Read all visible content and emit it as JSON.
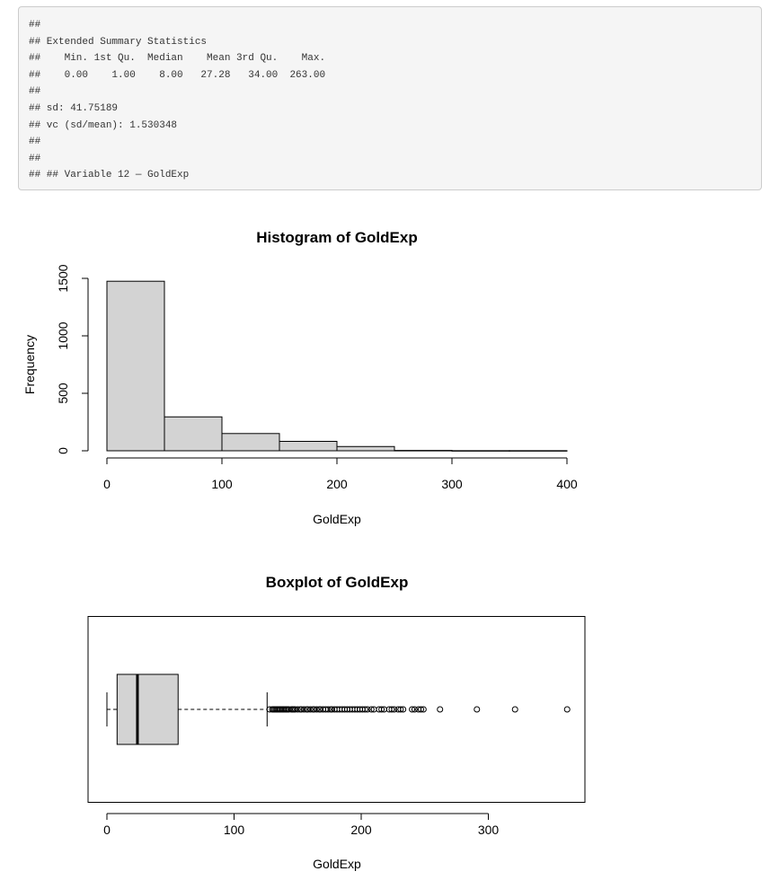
{
  "console": {
    "lines": [
      "##",
      "## Extended Summary Statistics",
      "##    Min. 1st Qu.  Median    Mean 3rd Qu.    Max.",
      "##    0.00    1.00    8.00   27.28   34.00  263.00",
      "##",
      "## sd: 41.75189",
      "## vc (sd/mean): 1.530348",
      "##",
      "##",
      "## ## Variable 12 — GoldExp"
    ]
  },
  "colors": {
    "bar_fill": "#d3d3d3",
    "stroke": "#000000",
    "console_bg": "#f5f5f5",
    "console_border": "#cccccc"
  },
  "chart_data": [
    {
      "type": "bar",
      "chart_kind": "histogram",
      "title": "Histogram of GoldExp",
      "xlabel": "GoldExp",
      "ylabel": "Frequency",
      "bins": [
        [
          0,
          50
        ],
        [
          50,
          100
        ],
        [
          100,
          150
        ],
        [
          150,
          200
        ],
        [
          200,
          250
        ],
        [
          250,
          300
        ],
        [
          300,
          350
        ],
        [
          350,
          400
        ]
      ],
      "values": [
        1475,
        295,
        150,
        82,
        37,
        3,
        1,
        1
      ],
      "xlim": [
        0,
        400
      ],
      "ylim": [
        0,
        1500
      ],
      "xticks": [
        0,
        100,
        200,
        300,
        400
      ],
      "xtick_labels": [
        "0",
        "100",
        "200",
        "300",
        "400"
      ],
      "yticks": [
        0,
        500,
        1000,
        1500
      ],
      "ytick_labels": [
        "0",
        "500",
        "1000",
        "1500"
      ],
      "grid": false
    },
    {
      "type": "boxplot",
      "title": "Boxplot of GoldExp",
      "xlabel": "GoldExp",
      "orientation": "horizontal",
      "stats": {
        "lower_whisker": 0,
        "q1": 8,
        "median": 24,
        "q3": 56,
        "upper_whisker": 126
      },
      "outliers": [
        128,
        130,
        131,
        132,
        133,
        134,
        135,
        136,
        137,
        138,
        139,
        140,
        141,
        142,
        143,
        145,
        146,
        147,
        148,
        150,
        152,
        153,
        155,
        157,
        158,
        160,
        162,
        163,
        165,
        167,
        168,
        170,
        172,
        174,
        176,
        177,
        179,
        181,
        183,
        185,
        187,
        189,
        191,
        193,
        195,
        197,
        199,
        201,
        203,
        205,
        208,
        210,
        214,
        216,
        218,
        222,
        224,
        226,
        229,
        231,
        233,
        240,
        242,
        245,
        247,
        249,
        262,
        291,
        321,
        362
      ],
      "xticks": [
        0,
        100,
        200,
        300
      ],
      "xtick_labels": [
        "0",
        "100",
        "200",
        "300"
      ],
      "grid": false
    }
  ]
}
